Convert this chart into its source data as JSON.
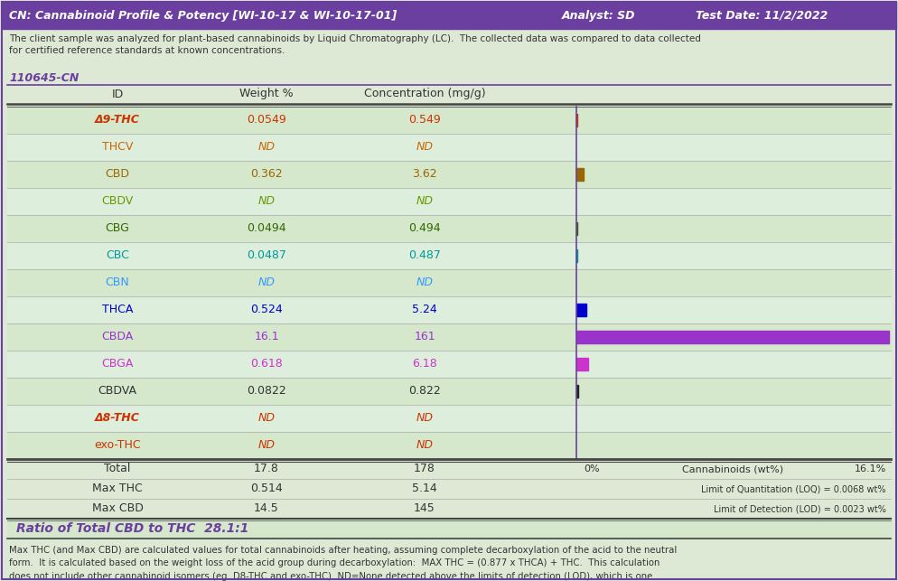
{
  "title_line": "CN: Cannabinoid Profile & Potency [WI-10-17 & WI-10-17-01]",
  "analyst": "Analyst: SD",
  "test_date": "Test Date: 11/2/2022",
  "description": "The client sample was analyzed for plant-based cannabinoids by Liquid Chromatography (LC).  The collected data was compared to data collected\nfor certified reference standards at known concentrations.",
  "sample_id": "110645-CN",
  "bg_color": "#dde9d5",
  "header_bg": "#6b3fa0",
  "columns": [
    "ID",
    "Weight %",
    "Concentration (mg/g)"
  ],
  "rows": [
    {
      "id": "Δ9-THC",
      "weight": "0.0549",
      "conc": "0.549",
      "color": "#cc3300",
      "bar_val": 0.0549,
      "bar_color": "#cc3300"
    },
    {
      "id": "THCV",
      "weight": "ND",
      "conc": "ND",
      "color": "#cc6600",
      "bar_val": 0,
      "bar_color": "#cc6600"
    },
    {
      "id": "CBD",
      "weight": "0.362",
      "conc": "3.62",
      "color": "#996600",
      "bar_val": 0.362,
      "bar_color": "#996600"
    },
    {
      "id": "CBDV",
      "weight": "ND",
      "conc": "ND",
      "color": "#669900",
      "bar_val": 0,
      "bar_color": "#669900"
    },
    {
      "id": "CBG",
      "weight": "0.0494",
      "conc": "0.494",
      "color": "#336600",
      "bar_val": 0.0494,
      "bar_color": "#336600"
    },
    {
      "id": "CBC",
      "weight": "0.0487",
      "conc": "0.487",
      "color": "#009999",
      "bar_val": 0.0487,
      "bar_color": "#009999"
    },
    {
      "id": "CBN",
      "weight": "ND",
      "conc": "ND",
      "color": "#3399ff",
      "bar_val": 0,
      "bar_color": "#3399ff"
    },
    {
      "id": "THCA",
      "weight": "0.524",
      "conc": "5.24",
      "color": "#0000cc",
      "bar_val": 0.524,
      "bar_color": "#0000cc"
    },
    {
      "id": "CBDA",
      "weight": "16.1",
      "conc": "161",
      "color": "#9933cc",
      "bar_val": 16.1,
      "bar_color": "#9933cc"
    },
    {
      "id": "CBGA",
      "weight": "0.618",
      "conc": "6.18",
      "color": "#cc33cc",
      "bar_val": 0.618,
      "bar_color": "#cc33cc"
    },
    {
      "id": "CBDVA",
      "weight": "0.0822",
      "conc": "0.822",
      "color": "#333333",
      "bar_val": 0.0822,
      "bar_color": "#222222"
    },
    {
      "id": "Δ8-THC",
      "weight": "ND",
      "conc": "ND",
      "color": "#cc3300",
      "bar_val": 0,
      "bar_color": "#cc3300"
    },
    {
      "id": "exo-THC",
      "weight": "ND",
      "conc": "ND",
      "color": "#cc3300",
      "bar_val": 0,
      "bar_color": "#cc3300"
    }
  ],
  "total_row": {
    "label": "Total",
    "weight": "17.8",
    "conc": "178"
  },
  "max_thc_row": {
    "label": "Max THC",
    "weight": "0.514",
    "conc": "5.14"
  },
  "max_cbd_row": {
    "label": "Max CBD",
    "weight": "14.5",
    "conc": "145"
  },
  "ratio_text": "Ratio of Total CBD to THC  28.1:1",
  "footnote": "Max THC (and Max CBD) are calculated values for total cannabinoids after heating, assuming complete decarboxylation of the acid to the neutral\nform.  It is calculated based on the weight loss of the acid group during decarboxylation:  MAX THC = (0.877 x THCA) + THC.  This calculation\ndoes not include other cannabinoid isomers (eg. D8-THC and exo-THC). ND=None detected above the limits of detection (LOD), which is one\nthird of Limit of Quantification (LOQ).  For values reported as \"<LOQ\", the estimated value is included in the calculated Total.",
  "bar_max_wt": 16.1,
  "axis_label_left": "0%",
  "axis_label_right": "16.1%",
  "axis_mid_label": "Cannabinoids (wt%)",
  "loq_text": "Limit of Quantitation (LOQ) = 0.0068 wt%",
  "lod_text": "Limit of Detection (LOD) = 0.0023 wt%"
}
